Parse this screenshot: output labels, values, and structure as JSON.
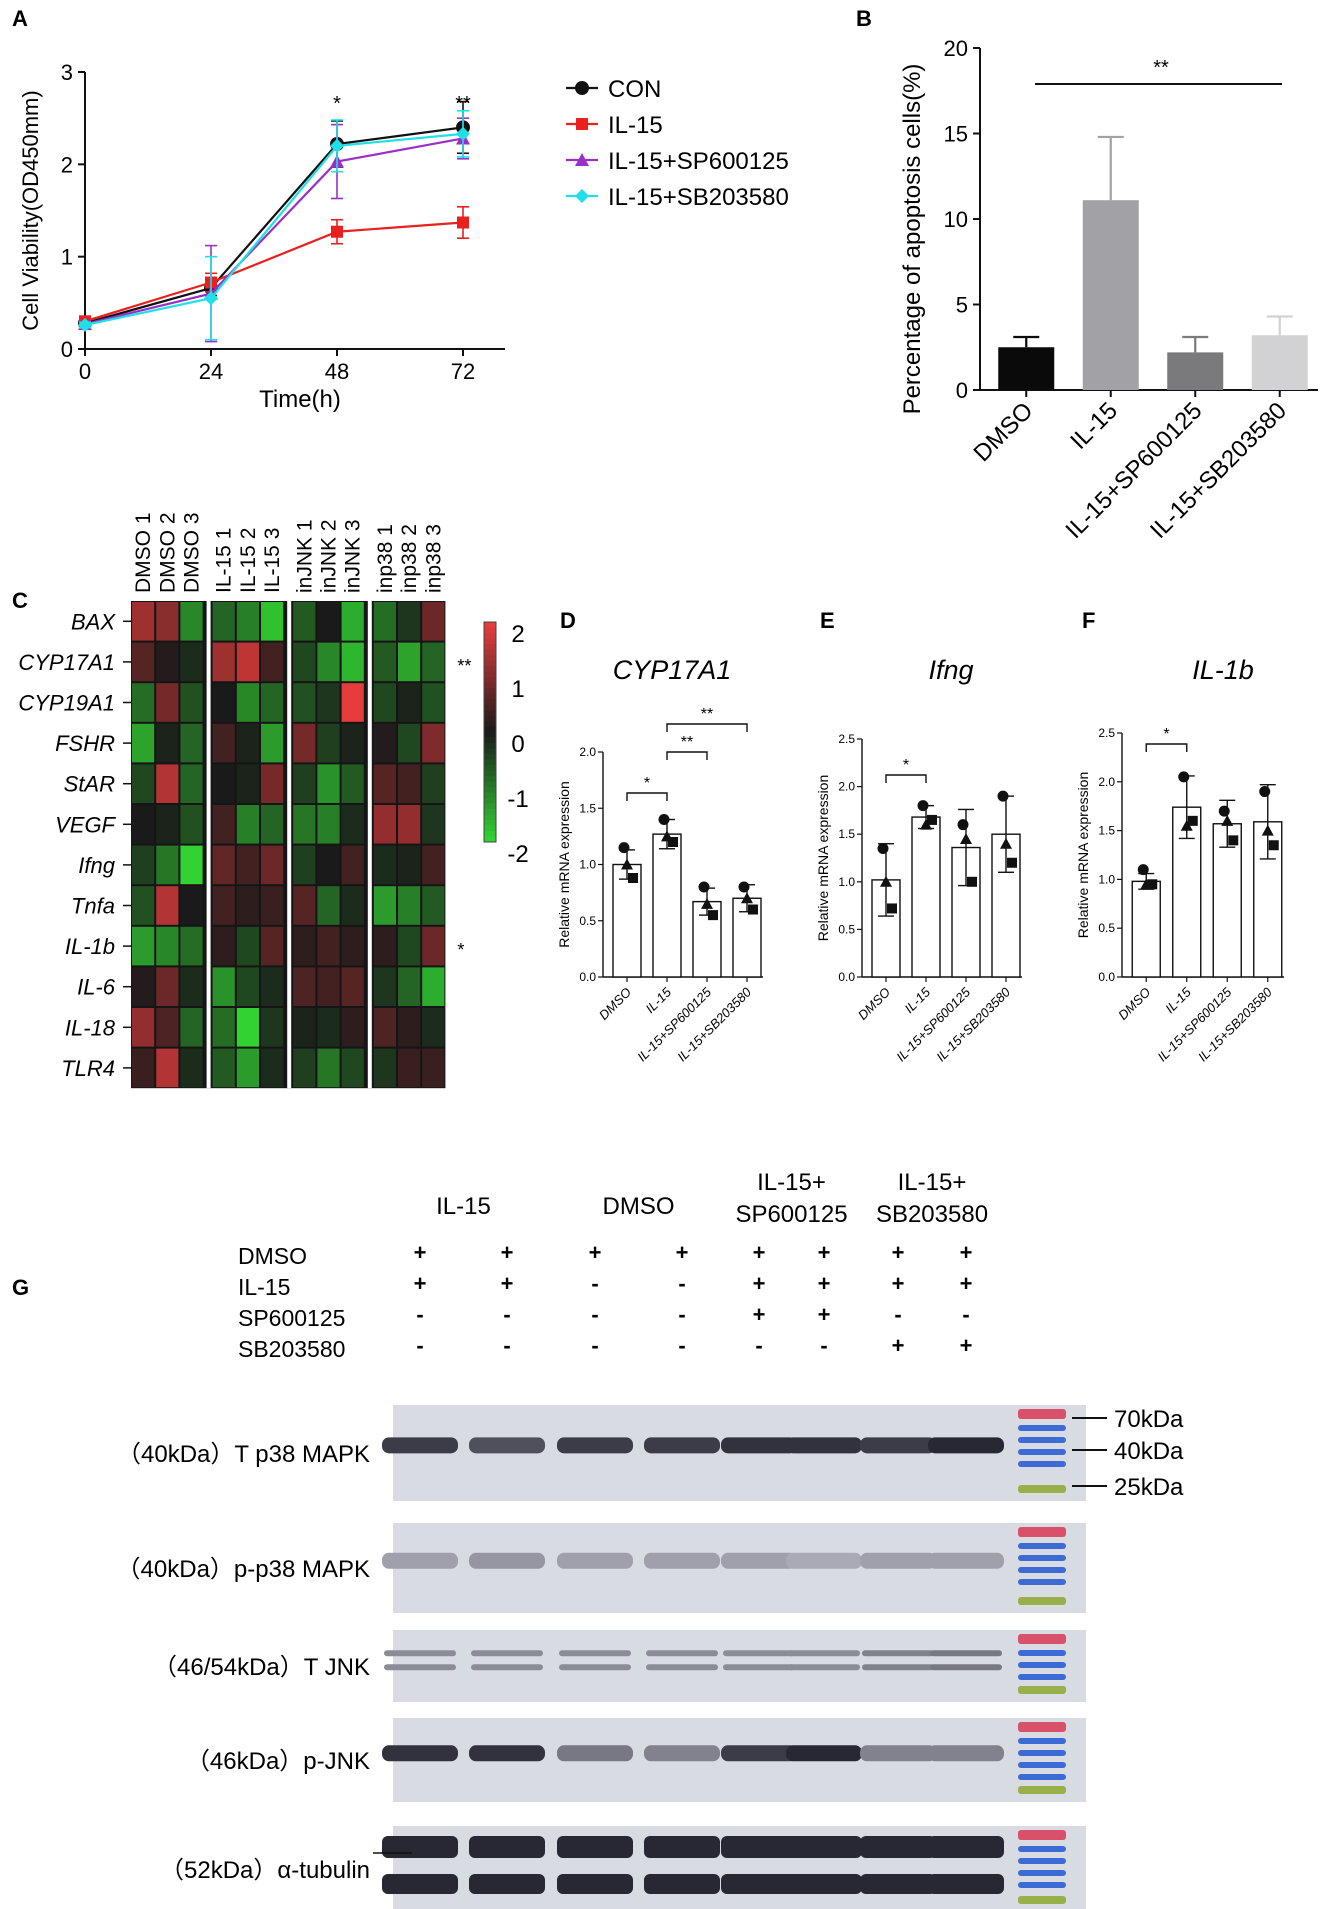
{
  "panels": {
    "a": "A",
    "b": "B",
    "c": "C",
    "d": "D",
    "e": "E",
    "f": "F",
    "g": "G"
  },
  "chart_data": [
    {
      "id": "A",
      "type": "line",
      "x": [
        0,
        24,
        48,
        72
      ],
      "xticks": [
        "0",
        "24",
        "48",
        "72"
      ],
      "yticks": [
        "0",
        "1",
        "2",
        "3"
      ],
      "xlabel": "Time(h)",
      "ylabel": "Cell Viability(OD450mm)",
      "xlim": [
        0,
        80
      ],
      "ylim": [
        0,
        3
      ],
      "legend_position": "right",
      "series": [
        {
          "name": "CON",
          "color": "#111111",
          "marker": "circle",
          "values": [
            0.28,
            0.66,
            2.22,
            2.4
          ],
          "err": [
            0.04,
            0.08,
            0.25,
            0.28
          ]
        },
        {
          "name": "IL-15",
          "color": "#e8201e",
          "marker": "square",
          "values": [
            0.3,
            0.72,
            1.27,
            1.37
          ],
          "err": [
            0.04,
            0.1,
            0.13,
            0.17
          ]
        },
        {
          "name": "IL-15+SP600125",
          "color": "#9b30c8",
          "marker": "triangle",
          "values": [
            0.27,
            0.6,
            2.03,
            2.28
          ],
          "err": [
            0.03,
            0.52,
            0.4,
            0.22
          ]
        },
        {
          "name": "IL-15+SB203580",
          "color": "#1ee0e6",
          "marker": "diamond",
          "values": [
            0.26,
            0.55,
            2.2,
            2.33
          ],
          "err": [
            0.03,
            0.45,
            0.28,
            0.25
          ]
        }
      ],
      "annotations": [
        {
          "x": 48,
          "text": "*"
        },
        {
          "x": 72,
          "text": "**"
        }
      ]
    },
    {
      "id": "B",
      "type": "bar",
      "categories": [
        "DMSO",
        "IL-15",
        "IL-15+SP600125",
        "IL-15+SB203580"
      ],
      "values": [
        2.5,
        11.1,
        2.2,
        3.2
      ],
      "err": [
        0.6,
        3.7,
        0.9,
        1.1
      ],
      "colors": [
        "#0a0a0a",
        "#a2a2a6",
        "#7a7a7c",
        "#d2d2d4"
      ],
      "ylabel": "Percentage of apoptosis cells(%)",
      "yticks": [
        "0",
        "5",
        "10",
        "15",
        "20"
      ],
      "ylim": [
        0,
        20
      ],
      "significance": "**"
    },
    {
      "id": "C",
      "type": "heatmap",
      "columns": [
        "DMSO 1",
        "DMSO 2",
        "DMSO 3",
        "IL-15 1",
        "IL-15 2",
        "IL-15 3",
        "inJNK 1",
        "inJNK 2",
        "inJNK 3",
        "inp38 1",
        "inp38 2",
        "inp38 3"
      ],
      "rows": [
        "BAX",
        "CYP17A1",
        "CYP19A1",
        "FSHR",
        "StAR",
        "VEGF",
        "Ifng",
        "Tnfa",
        "IL-1b",
        "IL-6",
        "IL-18",
        "TLR4"
      ],
      "row_marks": {
        "CYP17A1": "**",
        "IL-1b": "*"
      },
      "colorbar_ticks": [
        "2",
        "1",
        "0",
        "-1",
        "-2"
      ],
      "colorbar_range": [
        -2,
        2
      ],
      "values": [
        [
          1.3,
          1.1,
          -1.2,
          -0.8,
          -1.1,
          -1.8,
          -0.7,
          0.0,
          -1.6,
          -0.9,
          -0.3,
          0.8
        ],
        [
          0.6,
          0.1,
          -0.2,
          1.3,
          1.6,
          0.4,
          -0.5,
          -1.2,
          -1.7,
          -0.7,
          -1.5,
          -0.8
        ],
        [
          -0.9,
          0.9,
          -0.6,
          0.0,
          -1.2,
          -0.8,
          -0.6,
          -0.3,
          2.0,
          -0.5,
          -0.1,
          -0.6
        ],
        [
          -1.5,
          -0.1,
          -0.8,
          0.4,
          -0.1,
          -1.4,
          0.9,
          -0.4,
          -0.1,
          0.1,
          -0.5,
          1.0
        ],
        [
          -0.5,
          1.5,
          -0.8,
          0.0,
          -0.1,
          0.9,
          -0.4,
          -1.3,
          -0.7,
          0.6,
          0.4,
          -0.4
        ],
        [
          0.0,
          -0.1,
          -0.6,
          0.4,
          -1.1,
          -0.8,
          -1.0,
          -1.1,
          -0.2,
          1.2,
          1.2,
          -0.3
        ],
        [
          -0.4,
          -1.0,
          -2.0,
          0.7,
          0.4,
          0.8,
          -0.4,
          0.0,
          0.4,
          -0.2,
          -0.1,
          0.4
        ],
        [
          -0.6,
          1.5,
          0.0,
          0.4,
          0.2,
          0.3,
          0.6,
          -0.8,
          -0.2,
          -1.4,
          -1.1,
          -0.7
        ],
        [
          -1.4,
          -1.2,
          -0.9,
          0.2,
          -0.5,
          0.6,
          0.2,
          0.4,
          0.2,
          0.2,
          -0.5,
          0.8
        ],
        [
          0.1,
          0.8,
          -0.2,
          -1.3,
          -0.5,
          -0.2,
          0.5,
          0.4,
          0.6,
          -0.3,
          -0.8,
          -1.6
        ],
        [
          1.2,
          0.5,
          -0.8,
          -0.9,
          -2.0,
          -0.3,
          -0.1,
          -0.2,
          0.2,
          0.5,
          0.2,
          -0.2
        ],
        [
          0.3,
          1.5,
          -0.2,
          -0.7,
          -1.4,
          -0.2,
          -0.4,
          -1.0,
          -0.5,
          -0.3,
          0.3,
          0.3
        ]
      ]
    },
    {
      "id": "D",
      "type": "bar",
      "title": "CYP17A1",
      "ylabel": "Relative mRNA expression",
      "categories": [
        "DMSO",
        "IL-15",
        "IL-15+SP600125",
        "IL-15+SB203580"
      ],
      "values": [
        1.0,
        1.27,
        0.67,
        0.7
      ],
      "err": [
        0.13,
        0.13,
        0.12,
        0.12
      ],
      "points": [
        [
          1.15,
          0.88,
          1.0
        ],
        [
          1.4,
          1.2,
          1.25
        ],
        [
          0.8,
          0.55,
          0.65
        ],
        [
          0.8,
          0.6,
          0.7
        ]
      ],
      "yticks": [
        "0.0",
        "0.5",
        "1.0",
        "1.5",
        "2.0"
      ],
      "ylim": [
        0,
        2.0
      ],
      "brackets": [
        {
          "from": 0,
          "to": 1,
          "text": "*"
        },
        {
          "from": 1,
          "to": 2,
          "text": "**"
        },
        {
          "from": 1,
          "to": 3,
          "text": "**"
        }
      ]
    },
    {
      "id": "E",
      "type": "bar",
      "title": "Ifng",
      "ylabel": "Relative mRNA expression",
      "categories": [
        "DMSO",
        "IL-15",
        "IL-15+SP600125",
        "IL-15+SB203580"
      ],
      "values": [
        1.02,
        1.68,
        1.36,
        1.5
      ],
      "err": [
        0.38,
        0.12,
        0.4,
        0.4
      ],
      "points": [
        [
          1.35,
          0.72,
          1.0
        ],
        [
          1.8,
          1.65,
          1.6
        ],
        [
          1.6,
          1.0,
          1.45
        ],
        [
          1.9,
          1.2,
          1.4
        ]
      ],
      "yticks": [
        "0.0",
        "0.5",
        "1.0",
        "1.5",
        "2.0",
        "2.5"
      ],
      "ylim": [
        0,
        2.5
      ],
      "brackets": [
        {
          "from": 0,
          "to": 1,
          "text": "*"
        }
      ]
    },
    {
      "id": "F",
      "type": "bar",
      "title": "IL-1b",
      "ylabel": "Relative mRNA expression",
      "categories": [
        "DMSO",
        "IL-15",
        "IL-15+SP600125",
        "IL-15+SB203580"
      ],
      "values": [
        0.98,
        1.74,
        1.57,
        1.59
      ],
      "err": [
        0.08,
        0.32,
        0.24,
        0.38
      ],
      "points": [
        [
          1.1,
          0.95,
          0.95
        ],
        [
          2.05,
          1.6,
          1.55
        ],
        [
          1.7,
          1.4,
          1.6
        ],
        [
          1.9,
          1.35,
          1.5
        ]
      ],
      "yticks": [
        "0.0",
        "0.5",
        "1.0",
        "1.5",
        "2.0",
        "2.5"
      ],
      "ylim": [
        0,
        2.5
      ],
      "brackets": [
        {
          "from": 0,
          "to": 1,
          "text": "*"
        }
      ]
    }
  ],
  "western": {
    "group_headers": [
      {
        "line1": "IL-15",
        "line2": ""
      },
      {
        "line1": "DMSO",
        "line2": ""
      },
      {
        "line1": "IL-15+",
        "line2": "SP600125"
      },
      {
        "line1": "IL-15+",
        "line2": "SB203580"
      }
    ],
    "treatments": [
      {
        "label": "DMSO",
        "marks": [
          "+",
          "+",
          "+",
          "+",
          "+",
          "+",
          "+",
          "+"
        ]
      },
      {
        "label": "IL-15",
        "marks": [
          "+",
          "+",
          "-",
          "-",
          "+",
          "+",
          "+",
          "+"
        ]
      },
      {
        "label": "SP600125",
        "marks": [
          "-",
          "-",
          "-",
          "-",
          "+",
          "+",
          "-",
          "-"
        ]
      },
      {
        "label": "SB203580",
        "marks": [
          "-",
          "-",
          "-",
          "-",
          "-",
          "-",
          "+",
          "+"
        ]
      }
    ],
    "blots": [
      {
        "label": "（40kDa）T p38 MAPK",
        "intensity": [
          0.85,
          0.75,
          0.85,
          0.85,
          0.9,
          0.9,
          0.85,
          0.95
        ]
      },
      {
        "label": "（40kDa）p-p38 MAPK",
        "intensity": [
          0.35,
          0.4,
          0.35,
          0.35,
          0.35,
          0.3,
          0.35,
          0.35
        ]
      },
      {
        "label": "（46/54kDa）T JNK",
        "intensity": [
          0.45,
          0.45,
          0.45,
          0.45,
          0.45,
          0.45,
          0.5,
          0.55
        ]
      },
      {
        "label": "（46kDa）p-JNK",
        "intensity": [
          0.9,
          0.9,
          0.55,
          0.5,
          0.85,
          0.95,
          0.5,
          0.5
        ]
      },
      {
        "label": "（52kDa）α-tubulin",
        "intensity": [
          0.95,
          0.95,
          0.95,
          0.95,
          0.95,
          0.95,
          0.95,
          0.95
        ]
      }
    ],
    "markers": [
      "70kDa",
      "40kDa",
      "25kDa"
    ]
  }
}
